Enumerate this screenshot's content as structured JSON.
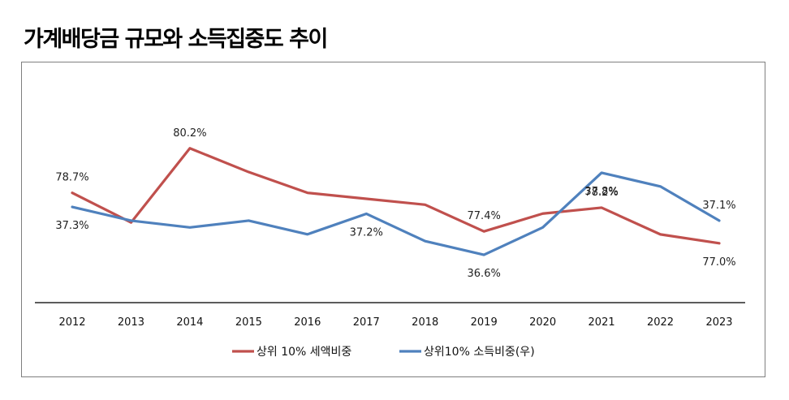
{
  "page": {
    "title": "가계배당금 규모와 소득집중도 추이"
  },
  "chart_data": {
    "type": "line",
    "title": "가계배당금 규모와 소득집중도 추이",
    "xlabel": "",
    "ylabel": "",
    "categories": [
      "2012",
      "2013",
      "2014",
      "2015",
      "2016",
      "2017",
      "2018",
      "2019",
      "2020",
      "2021",
      "2022",
      "2023"
    ],
    "series": [
      {
        "name": "상위 10% 세액비중",
        "axis": "left",
        "color": "#c0504d",
        "values": [
          78.7,
          77.7,
          80.2,
          79.4,
          78.7,
          78.5,
          78.3,
          77.4,
          78.0,
          78.2,
          77.3,
          77.0
        ],
        "ylim": [
          75.0,
          82.6
        ],
        "labels": [
          {
            "index": 0,
            "text": "78.7%",
            "position": "above"
          },
          {
            "index": 2,
            "text": "80.2%",
            "position": "above"
          },
          {
            "index": 7,
            "text": "77.4%",
            "position": "above"
          },
          {
            "index": 9,
            "text": "78.2%",
            "position": "above"
          },
          {
            "index": 11,
            "text": "77.0%",
            "position": "below"
          }
        ]
      },
      {
        "name": "상위10% 소득비중(우)",
        "axis": "right",
        "color": "#4f81bd",
        "values": [
          37.3,
          37.1,
          37.0,
          37.1,
          36.9,
          37.2,
          36.8,
          36.6,
          37.0,
          37.8,
          37.6,
          37.1
        ],
        "ylim": [
          35.9,
          39.2
        ],
        "labels": [
          {
            "index": 0,
            "text": "37.3%",
            "position": "below"
          },
          {
            "index": 5,
            "text": "37.2%",
            "position": "below"
          },
          {
            "index": 7,
            "text": "36.6%",
            "position": "below"
          },
          {
            "index": 9,
            "text": "37.8%",
            "position": "below"
          },
          {
            "index": 11,
            "text": "37.1%",
            "position": "above"
          }
        ]
      }
    ],
    "legend": {
      "placement": "bottom",
      "entries": [
        "상위 10% 세액비중",
        "상위10% 소득비중(우)"
      ]
    },
    "grid": false,
    "y_axes_visible": false
  }
}
